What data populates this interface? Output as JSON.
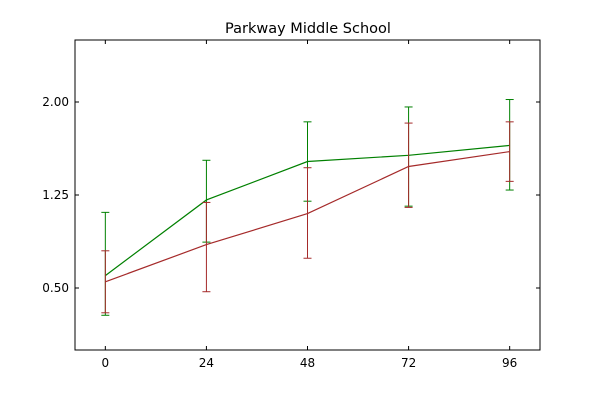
{
  "chart_data": {
    "type": "line",
    "title": "Parkway Middle School",
    "xlabel": "",
    "ylabel": "",
    "x": [
      0,
      24,
      48,
      72,
      96
    ],
    "xlim": [
      -7.2,
      103.2
    ],
    "ylim": [
      0.0,
      2.5
    ],
    "xticks": [
      0,
      24,
      48,
      72,
      96
    ],
    "xtick_labels": [
      "0",
      "24",
      "48",
      "72",
      "96"
    ],
    "yticks": [
      0.5,
      1.25,
      2.0
    ],
    "ytick_labels": [
      "0.50",
      "1.25",
      "2.00"
    ],
    "grid": false,
    "legend": "none",
    "series": [
      {
        "color": "#008000",
        "values": [
          0.6,
          1.21,
          1.52,
          1.57,
          1.65
        ],
        "yerr_low": [
          0.28,
          0.87,
          1.2,
          1.16,
          1.29
        ],
        "yerr_high": [
          1.11,
          1.53,
          1.84,
          1.96,
          2.02
        ]
      },
      {
        "color": "#a52a2a",
        "values": [
          0.55,
          0.85,
          1.1,
          1.48,
          1.6
        ],
        "yerr_low": [
          0.3,
          0.47,
          0.74,
          1.15,
          1.36
        ],
        "yerr_high": [
          0.8,
          1.19,
          1.47,
          1.83,
          1.84
        ]
      }
    ]
  }
}
